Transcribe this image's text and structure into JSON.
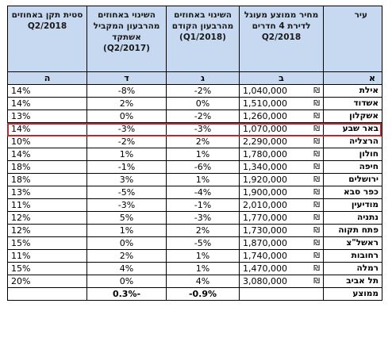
{
  "headers": {
    "city": "עיר",
    "price": "מחיר ממוצע מעוגל לדירת 4 חדרים Q2/2018",
    "change_q1": "השינוי באחוזים מהרבעון הקודם (Q1/2018)",
    "change_yoy": "השינוי באחוזים מהרבעון המקביל אשתקד (Q2/2017)",
    "yield": "סטית תקן באחוזים Q2/2018"
  },
  "letters": {
    "city": "א",
    "price": "ב",
    "change_q1": "ג",
    "change_yoy": "ד",
    "yield": "ה"
  },
  "currency_symbol": "₪",
  "rows": [
    {
      "city": "אילת",
      "price": "1,040,000",
      "q1": "-2%",
      "yoy": "-8%",
      "std": "14%"
    },
    {
      "city": "אשדוד",
      "price": "1,510,000",
      "q1": "0%",
      "yoy": "2%",
      "std": "14%"
    },
    {
      "city": "אשקלון",
      "price": "1,260,000",
      "q1": "-2%",
      "yoy": "0%",
      "std": "13%"
    },
    {
      "city": "באר שבע",
      "price": "1,070,000",
      "q1": "-3%",
      "yoy": "-3%",
      "std": "14%"
    },
    {
      "city": "הרצליה",
      "price": "2,290,000",
      "q1": "2%",
      "yoy": "-2%",
      "std": "10%"
    },
    {
      "city": "חולון",
      "price": "1,780,000",
      "q1": "1%",
      "yoy": "1%",
      "std": "14%"
    },
    {
      "city": "חיפה",
      "price": "1,340,000",
      "q1": "-6%",
      "yoy": "-1%",
      "std": "18%"
    },
    {
      "city": "ירושלים",
      "price": "1,920,000",
      "q1": "1%",
      "yoy": "3%",
      "std": "18%"
    },
    {
      "city": "כפר סבא",
      "price": "1,900,000",
      "q1": "-4%",
      "yoy": "-5%",
      "std": "13%"
    },
    {
      "city": "מודיעין",
      "price": "2,010,000",
      "q1": "-1%",
      "yoy": "-3%",
      "std": "11%"
    },
    {
      "city": "נתניה",
      "price": "1,770,000",
      "q1": "-3%",
      "yoy": "5%",
      "std": "12%"
    },
    {
      "city": "פתח תקוה",
      "price": "1,730,000",
      "q1": "2%",
      "yoy": "1%",
      "std": "12%"
    },
    {
      "city": "ראשל\"צ",
      "price": "1,870,000",
      "q1": "-5%",
      "yoy": "0%",
      "std": "15%"
    },
    {
      "city": "רחובות",
      "price": "1,740,000",
      "q1": "1%",
      "yoy": "2%",
      "std": "11%"
    },
    {
      "city": "רמלה",
      "price": "1,470,000",
      "q1": "1%",
      "yoy": "4%",
      "std": "15%"
    },
    {
      "city": "תל אביב",
      "price": "3,080,000",
      "q1": "4%",
      "yoy": "0%",
      "std": "20%"
    }
  ],
  "average": {
    "label": "ממוצע",
    "q1": "-0.9%",
    "yoy": "-0.3%"
  },
  "highlight_color": "#c0272d",
  "header_bg": "#c6d9f1"
}
